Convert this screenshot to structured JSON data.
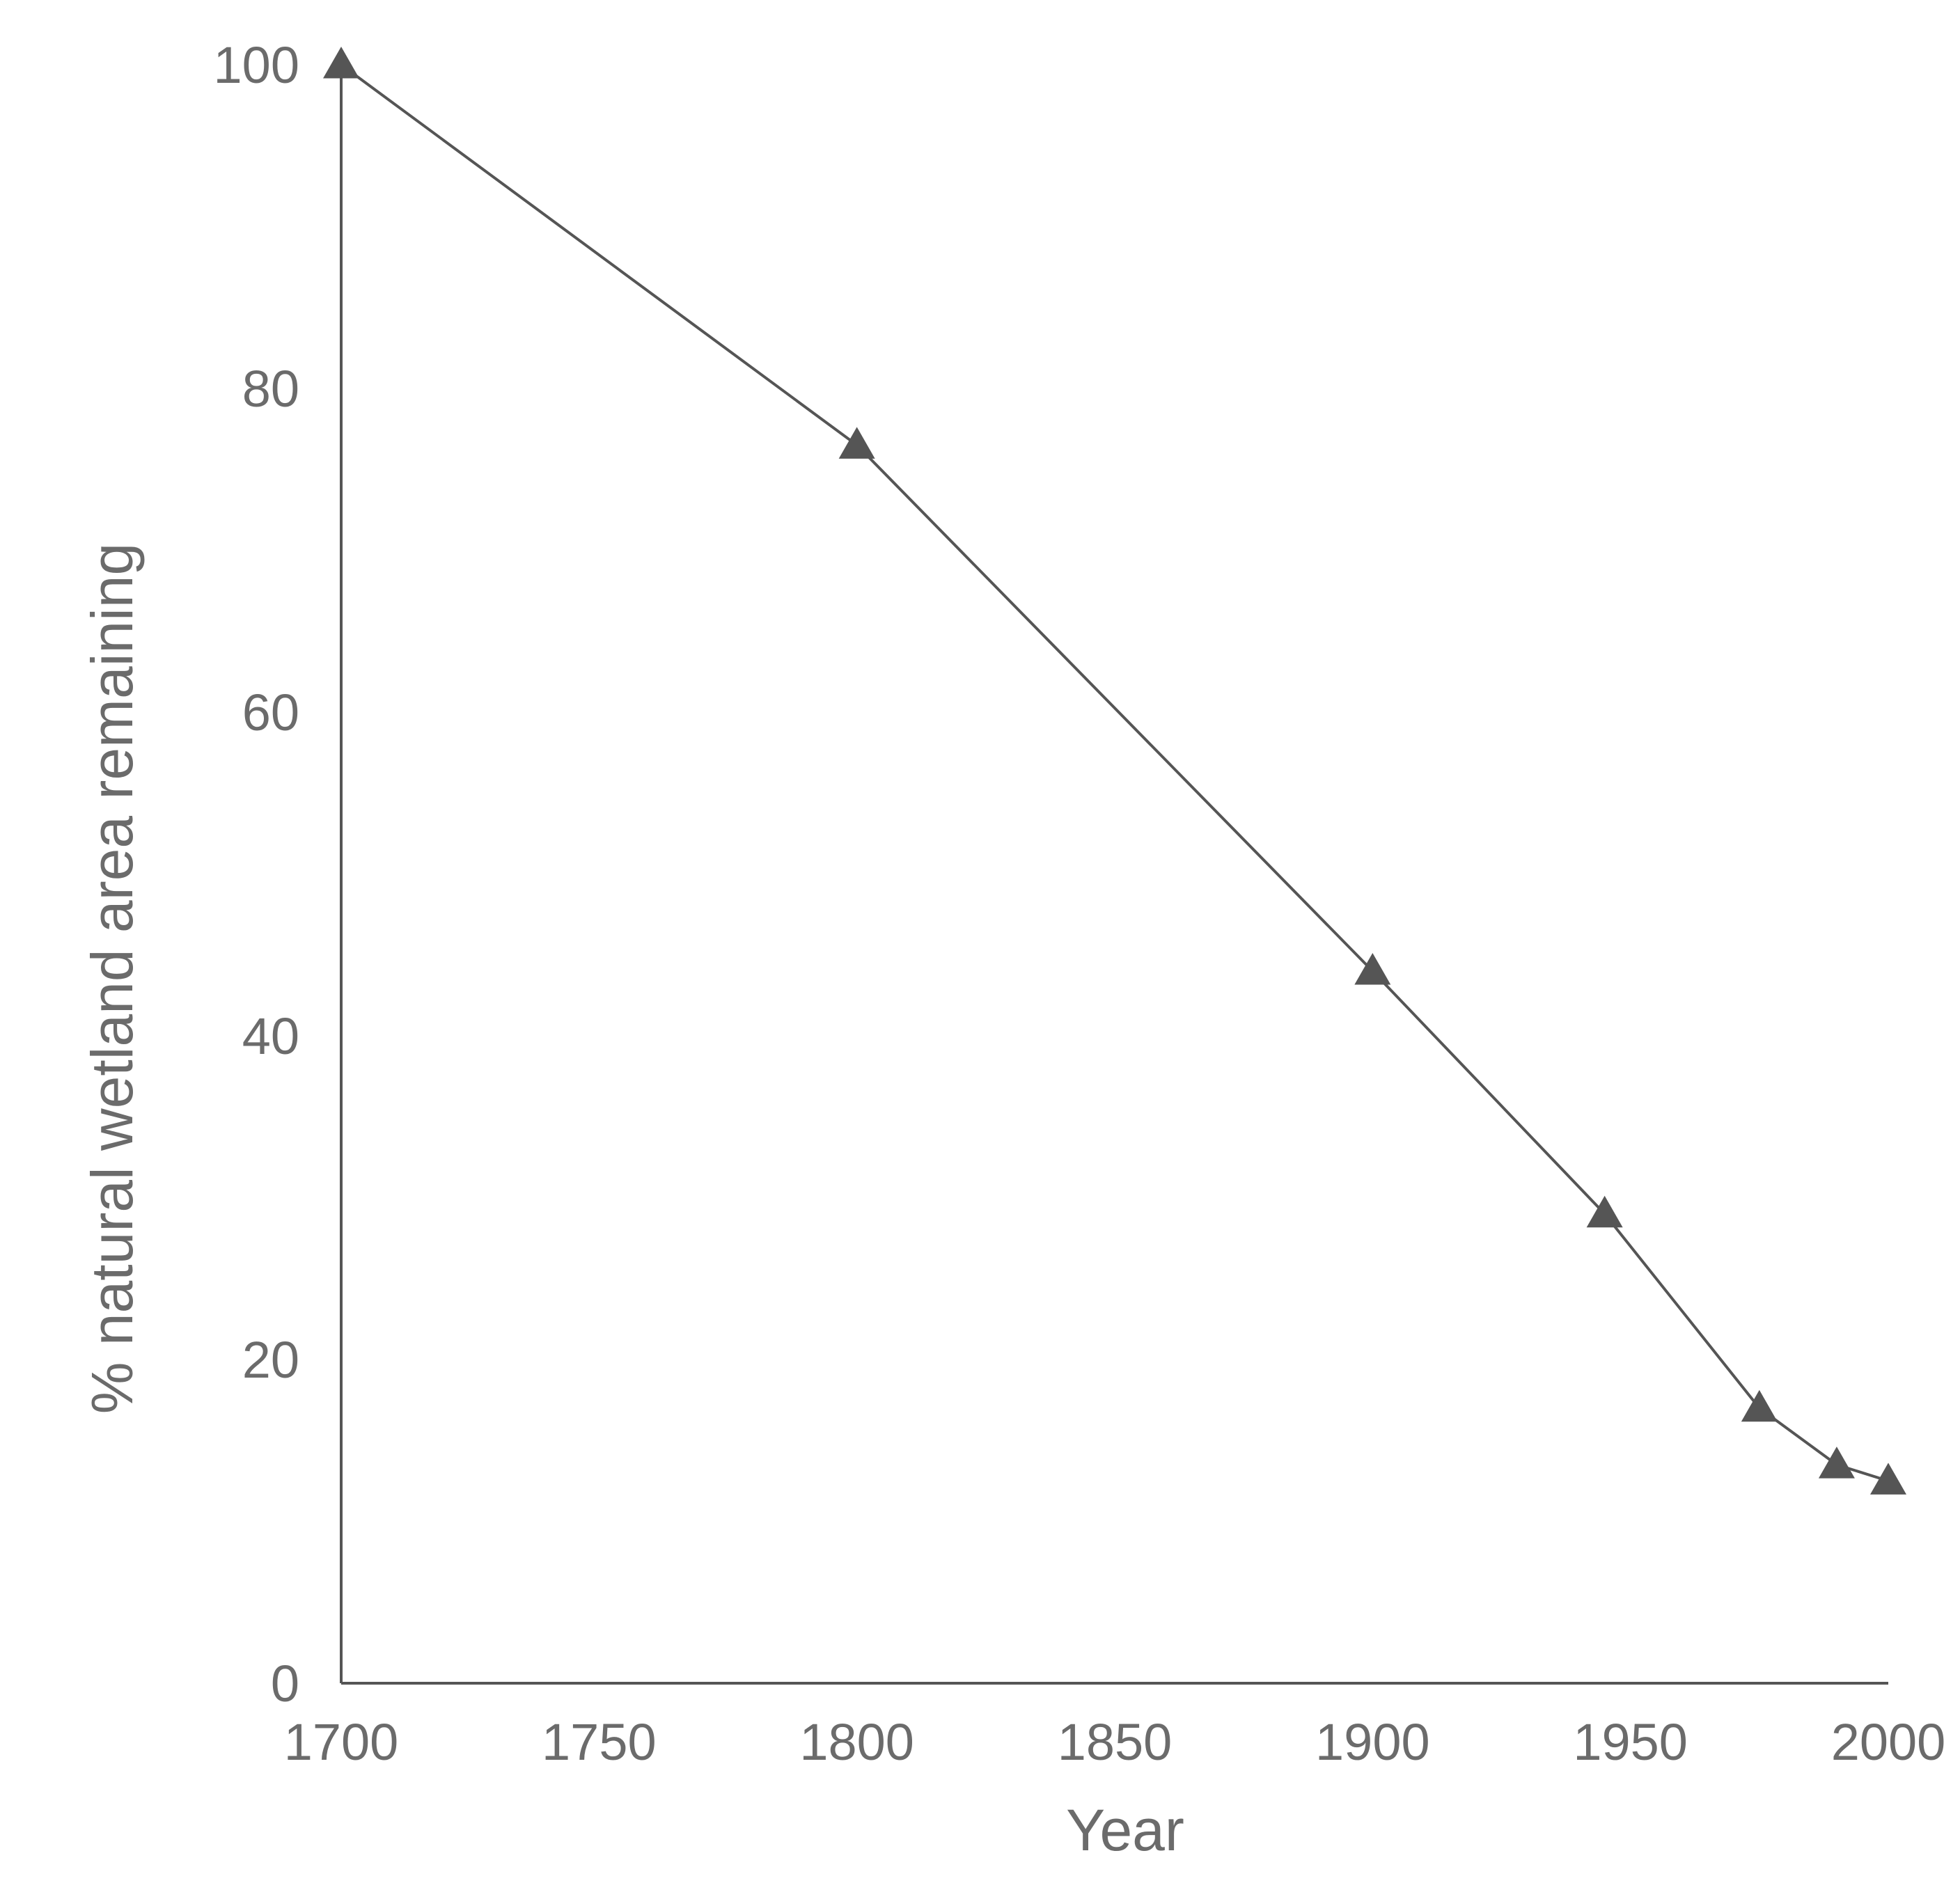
{
  "chart_data": {
    "type": "line",
    "title": "",
    "xlabel": "Year",
    "ylabel": "% natural wetland area remaining",
    "xlim": [
      1700,
      2000
    ],
    "ylim": [
      0,
      100
    ],
    "x_ticks": [
      "1700",
      "1750",
      "1800",
      "1850",
      "1900",
      "1950",
      "2000"
    ],
    "y_ticks": [
      "0",
      "20",
      "40",
      "60",
      "80",
      "100"
    ],
    "grid": false,
    "legend": "none",
    "marker": "triangle",
    "colors": {
      "line": "#555555",
      "marker": "#555555",
      "axis": "#555555",
      "text": "#6b6b6b"
    },
    "series": [
      {
        "x": [
          1700,
          1800,
          1900,
          1945,
          1975,
          1990,
          2000
        ],
        "y": [
          100,
          76.5,
          44,
          29,
          17,
          13.5,
          12.5
        ]
      }
    ]
  }
}
